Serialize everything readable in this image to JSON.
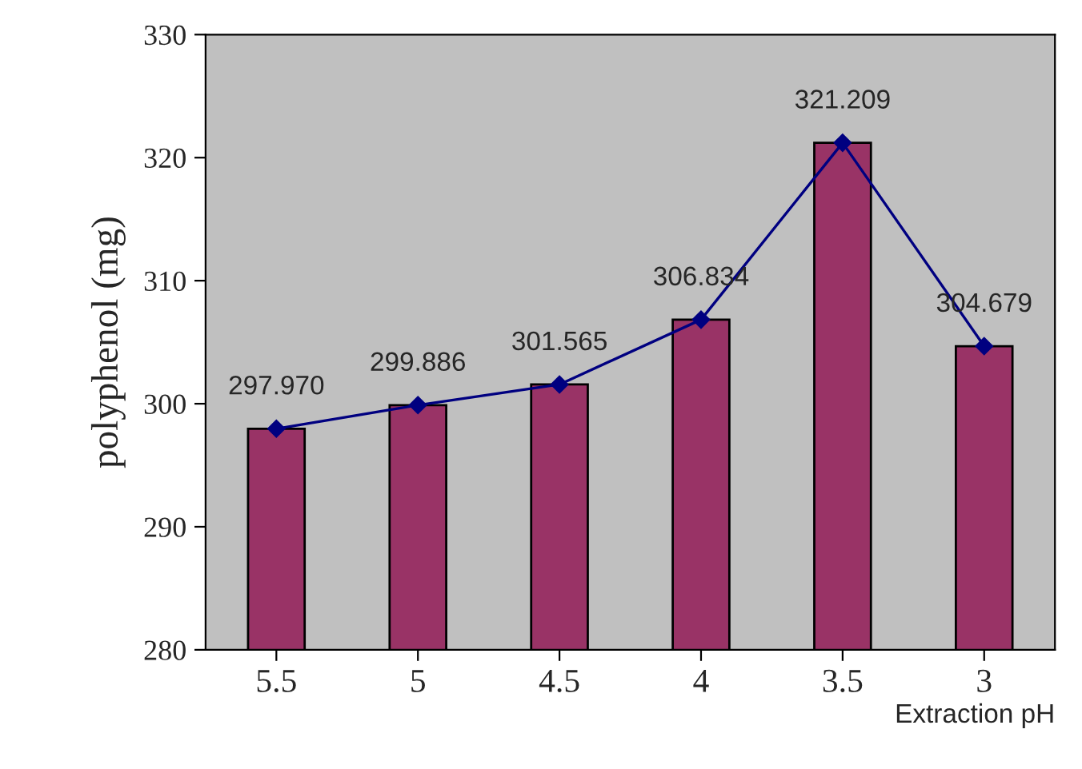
{
  "chart_data": {
    "type": "bar",
    "xlabel": "Extraction pH",
    "ylabel": "polyphenol (mg)",
    "categories": [
      "5.5",
      "5",
      "4.5",
      "4",
      "3.5",
      "3"
    ],
    "series": [
      {
        "color": "#993366",
        "values": [
          297.97,
          299.886,
          301.565,
          306.834,
          321.209,
          304.679
        ]
      },
      {
        "type": "line",
        "color": "#000080",
        "values": [
          297.97,
          299.886,
          301.565,
          306.834,
          321.209,
          304.679
        ]
      }
    ],
    "value_labels": [
      "297.970",
      "299.886",
      "301.565",
      "306.834",
      "321.209",
      "304.679"
    ],
    "ylim": [
      280,
      330
    ],
    "yticks": [
      280,
      290,
      300,
      310,
      320,
      330
    ],
    "marker": "diamond",
    "line_style": "solid",
    "grid": false,
    "legend": false
  }
}
